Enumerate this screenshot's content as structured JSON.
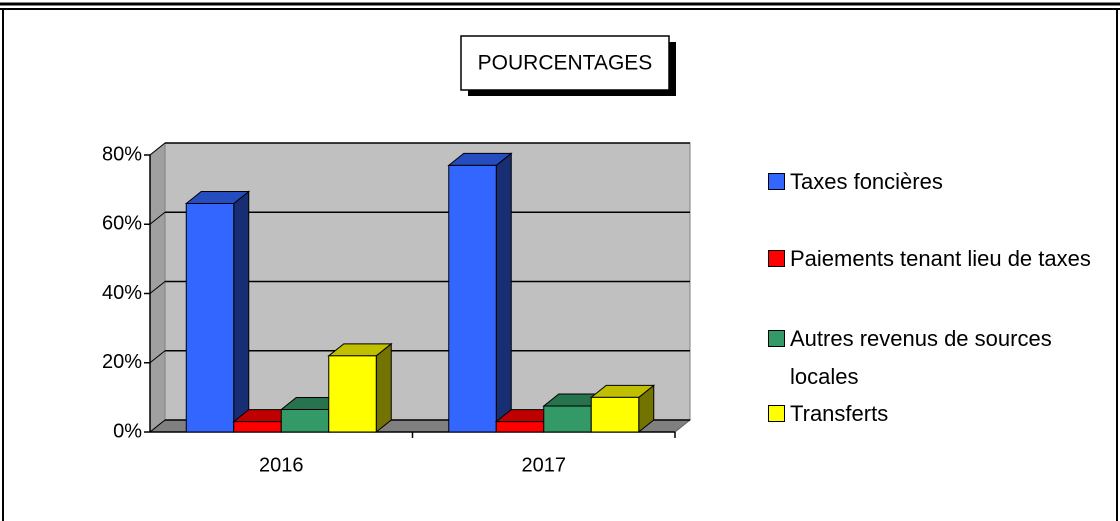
{
  "chart_data": {
    "type": "bar3d",
    "title": "POURCENTAGES",
    "categories": [
      "2016",
      "2017"
    ],
    "series": [
      {
        "name": "Taxes foncières",
        "color": "#3366ff",
        "values": [
          66,
          77
        ]
      },
      {
        "name": "Paiements tenant lieu de taxes",
        "color": "#ff0000",
        "values": [
          3,
          3
        ]
      },
      {
        "name": "Autres revenus de sources locales",
        "color": "#339966",
        "values": [
          6.5,
          7.5
        ]
      },
      {
        "name": "Transferts",
        "color": "#ffff00",
        "values": [
          22,
          10
        ]
      }
    ],
    "ylim": [
      0,
      80
    ],
    "yticks": [
      {
        "value": 0,
        "label": "0%"
      },
      {
        "value": 20,
        "label": "20%"
      },
      {
        "value": 40,
        "label": "40%"
      },
      {
        "value": 60,
        "label": "60%"
      },
      {
        "value": 80,
        "label": "80%"
      }
    ],
    "grid": true,
    "legend": "right"
  }
}
